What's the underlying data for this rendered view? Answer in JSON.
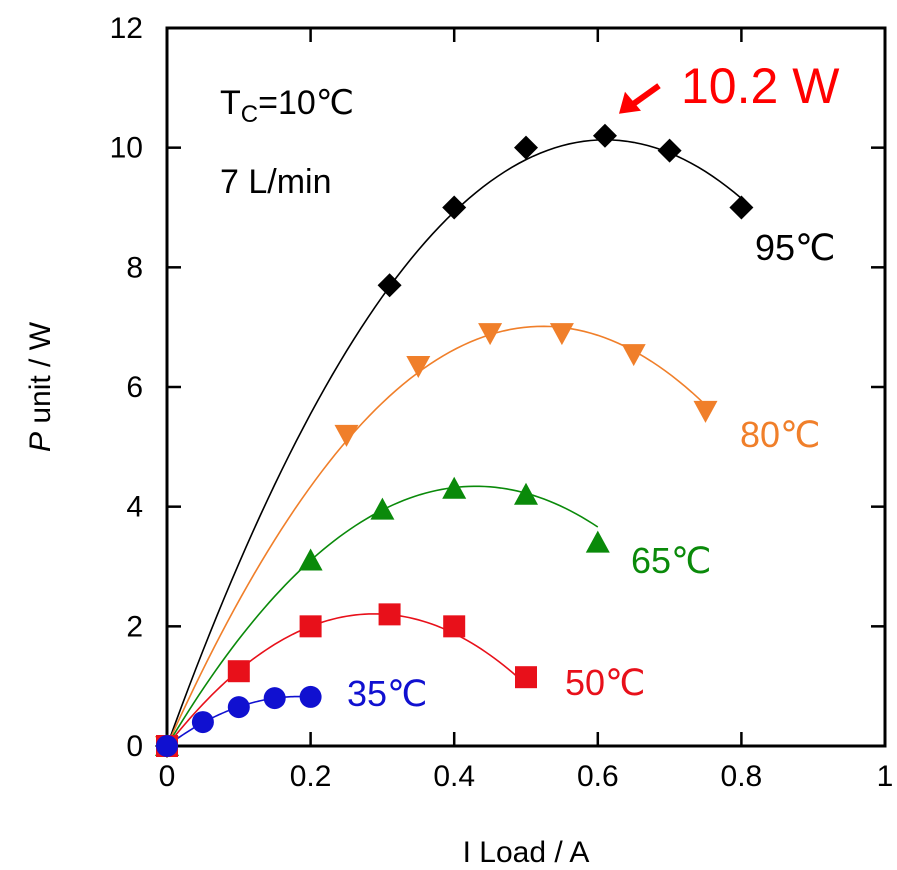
{
  "chart_data": {
    "type": "scatter",
    "xlabel": "I Load / A",
    "ylabel_italic": "P",
    "ylabel_rest": " unit / W",
    "xlim": [
      0,
      1
    ],
    "ylim": [
      0,
      12
    ],
    "xticks": [
      0,
      0.2,
      0.4,
      0.6,
      0.8,
      1
    ],
    "xtick_labels": [
      "0",
      "0.2",
      "0.4",
      "0.6",
      "0.8",
      "1"
    ],
    "yticks": [
      0,
      2,
      4,
      6,
      8,
      10,
      12
    ],
    "ytick_labels": [
      "0",
      "2",
      "4",
      "6",
      "8",
      "10",
      "12"
    ],
    "grid": false,
    "conditions": {
      "tc_main": "T",
      "tc_sub": "C",
      "tc_value": "=10℃",
      "flow": "7 L/min"
    },
    "annotation": {
      "text": "10.2 W",
      "color": "#ff0000",
      "x": 0.61,
      "y": 10.2
    },
    "series": [
      {
        "name": "95℃",
        "color": "#000000",
        "marker": "diamond",
        "x": [
          0,
          0.31,
          0.4,
          0.5,
          0.61,
          0.7,
          0.8
        ],
        "y": [
          0,
          7.7,
          9.0,
          10.0,
          10.2,
          9.95,
          9.0
        ],
        "fit": [
          0,
          33.2,
          -27.2
        ],
        "fit_range": [
          0,
          0.8
        ]
      },
      {
        "name": "80℃",
        "color": "#f07f2a",
        "marker": "triangle-down",
        "x": [
          0,
          0.25,
          0.35,
          0.45,
          0.55,
          0.65,
          0.75
        ],
        "y": [
          0,
          5.2,
          6.35,
          6.9,
          6.9,
          6.55,
          5.6
        ],
        "fit": [
          0,
          26.8,
          -25.6
        ],
        "fit_range": [
          0,
          0.75
        ]
      },
      {
        "name": "65℃",
        "color": "#0a8a0a",
        "marker": "triangle-up",
        "x": [
          0,
          0.2,
          0.3,
          0.4,
          0.5,
          0.6
        ],
        "y": [
          0,
          3.1,
          3.95,
          4.3,
          4.2,
          3.4
        ],
        "fit": [
          0,
          20.2,
          -23.5
        ],
        "fit_range": [
          0,
          0.6
        ]
      },
      {
        "name": "50℃",
        "color": "#e8101a",
        "marker": "square",
        "x": [
          0,
          0.1,
          0.2,
          0.31,
          0.4,
          0.5
        ],
        "y": [
          0,
          1.25,
          2.0,
          2.2,
          2.0,
          1.15
        ],
        "fit": [
          0,
          15.3,
          -26.5
        ],
        "fit_range": [
          0,
          0.5
        ]
      },
      {
        "name": "35℃",
        "color": "#1010d0",
        "marker": "circle",
        "x": [
          0,
          0.05,
          0.1,
          0.15,
          0.2
        ],
        "y": [
          0,
          0.4,
          0.65,
          0.8,
          0.82
        ],
        "fit": [
          0,
          9.0,
          -24.5
        ],
        "fit_range": [
          0,
          0.2
        ]
      }
    ]
  }
}
